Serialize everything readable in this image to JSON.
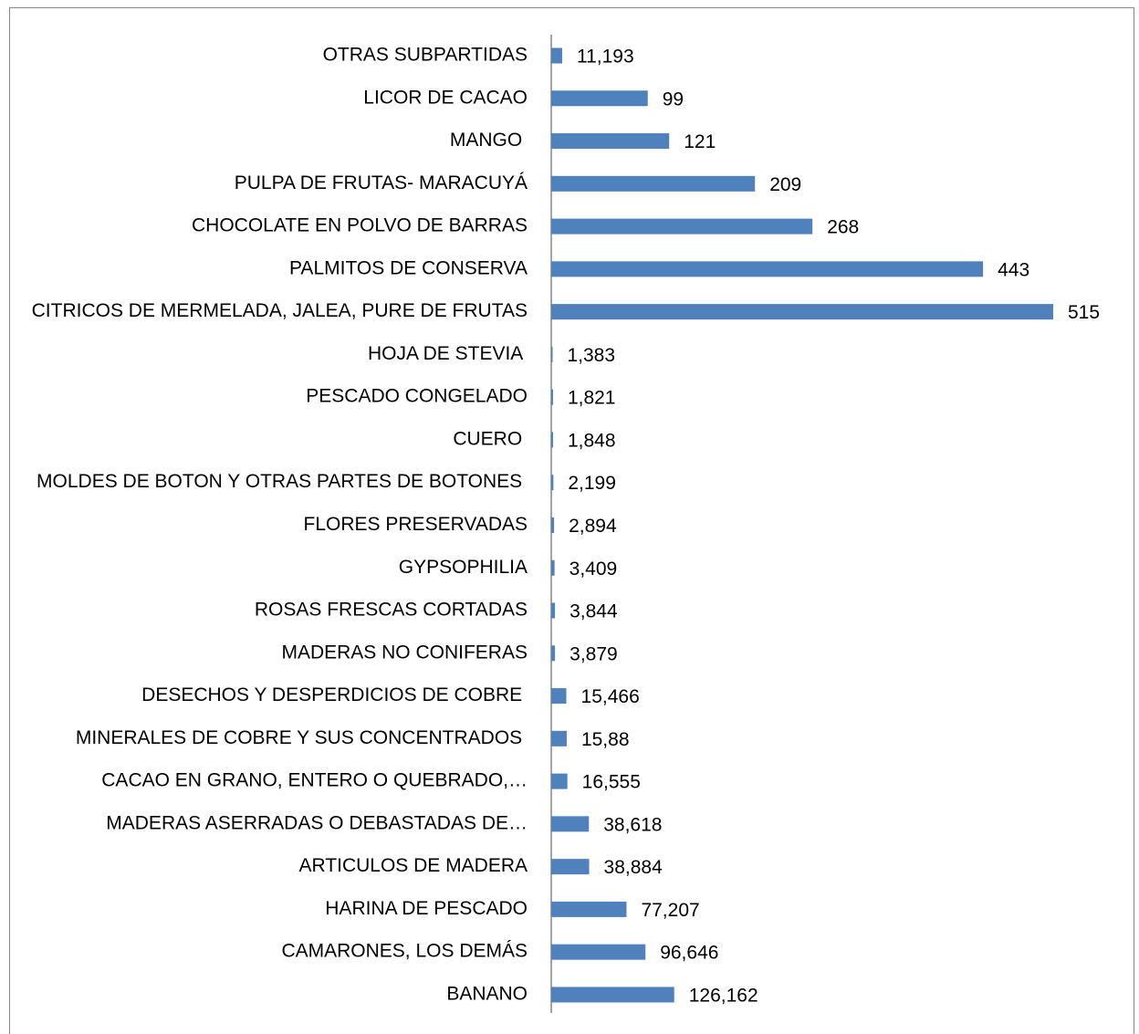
{
  "chart_data": {
    "type": "bar",
    "orientation": "horizontal",
    "categories": [
      "OTRAS SUBPARTIDAS",
      "LICOR DE CACAO",
      "MANGO ",
      "PULPA DE FRUTAS- MARACUYÁ",
      "CHOCOLATE EN POLVO DE BARRAS",
      "PALMITOS DE CONSERVA",
      "CITRICOS DE MERMELADA, JALEA, PURE DE FRUTAS",
      "HOJA DE STEVIA ",
      "PESCADO CONGELADO",
      "CUERO ",
      "MOLDES DE BOTON Y OTRAS PARTES DE BOTONES ",
      "FLORES PRESERVADAS",
      "GYPSOPHILIA",
      "ROSAS FRESCAS CORTADAS",
      "MADERAS NO CONIFERAS",
      "DESECHOS Y DESPERDICIOS DE COBRE ",
      "MINERALES DE COBRE Y SUS CONCENTRADOS ",
      "CACAO EN GRANO, ENTERO O QUEBRADO,…",
      "MADERAS ASERRADAS O DEBASTADAS DE…",
      "ARTICULOS DE MADERA",
      "HARINA DE PESCADO",
      "CAMARONES, LOS DEMÁS",
      "BANANO"
    ],
    "values": [
      11.193,
      99,
      121,
      209,
      268,
      443,
      515,
      1.383,
      1.821,
      1.848,
      2.199,
      2.894,
      3.409,
      3.844,
      3.879,
      15.466,
      15.88,
      16.555,
      38.618,
      38.884,
      77.207,
      96.646,
      126.162
    ],
    "value_labels": [
      "11,193",
      "99",
      "121",
      "209",
      "268",
      "443",
      "515",
      "1,383",
      "1,821",
      "1,848",
      "2,199",
      "2,894",
      "3,409",
      "3,844",
      "3,879",
      "15,466",
      "15,88",
      "16,555",
      "38,618",
      "38,884",
      "77,207",
      "96,646",
      "126,162"
    ],
    "color": "#4f81bd",
    "xlim": [
      0,
      515
    ]
  }
}
